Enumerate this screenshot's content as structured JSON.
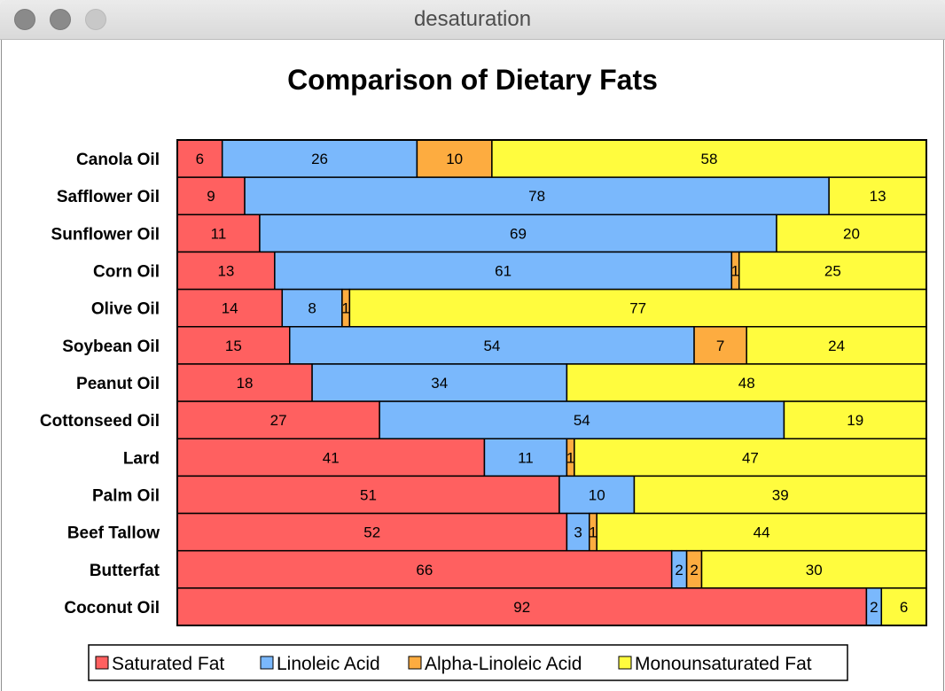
{
  "window": {
    "title": "desaturation"
  },
  "chart_data": {
    "type": "bar",
    "orientation": "horizontal",
    "stacked": true,
    "title": "Comparison of Dietary Fats",
    "xlabel": "",
    "ylabel": "",
    "xlim": [
      0,
      100
    ],
    "grid": false,
    "legend_position": "bottom",
    "categories": [
      "Canola Oil",
      "Safflower Oil",
      "Sunflower Oil",
      "Corn Oil",
      "Olive Oil",
      "Soybean Oil",
      "Peanut Oil",
      "Cottonseed Oil",
      "Lard",
      "Palm Oil",
      "Beef Tallow",
      "Butterfat",
      "Coconut Oil"
    ],
    "series": [
      {
        "name": "Saturated Fat",
        "color": "#ff6060",
        "values": [
          6,
          9,
          11,
          13,
          14,
          15,
          18,
          27,
          41,
          51,
          52,
          66,
          92
        ]
      },
      {
        "name": "Linoleic Acid",
        "color": "#7ab8fc",
        "values": [
          26,
          78,
          69,
          61,
          8,
          54,
          34,
          54,
          11,
          10,
          3,
          2,
          2
        ]
      },
      {
        "name": "Alpha-Linoleic Acid",
        "color": "#fdac40",
        "values": [
          10,
          0,
          0,
          1,
          1,
          7,
          0,
          0,
          1,
          0,
          1,
          2,
          0
        ]
      },
      {
        "name": "Monounsaturated Fat",
        "color": "#fffc3e",
        "values": [
          58,
          13,
          20,
          25,
          77,
          24,
          48,
          19,
          47,
          39,
          44,
          30,
          6
        ]
      }
    ]
  }
}
